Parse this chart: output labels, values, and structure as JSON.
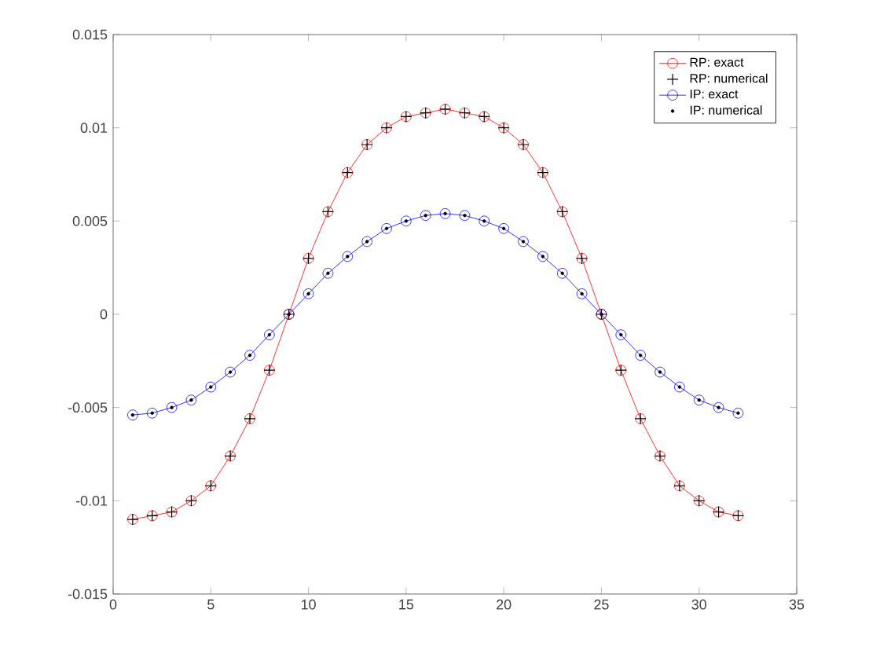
{
  "chart_data": {
    "type": "line",
    "x": [
      1,
      2,
      3,
      4,
      5,
      6,
      7,
      8,
      9,
      10,
      11,
      12,
      13,
      14,
      15,
      16,
      17,
      18,
      19,
      20,
      21,
      22,
      23,
      24,
      25,
      26,
      27,
      28,
      29,
      30,
      31,
      32
    ],
    "series": [
      {
        "name": "RP: exact",
        "color": "#ff0000",
        "marker": "circle",
        "line_style": "solid",
        "values": [
          -0.011,
          -0.0108,
          -0.0106,
          -0.01,
          -0.0092,
          -0.0076,
          -0.0056,
          -0.003,
          0,
          0.003,
          0.0055,
          0.0076,
          0.0091,
          0.01,
          0.0106,
          0.0108,
          0.011,
          0.0108,
          0.0106,
          0.01,
          0.0091,
          0.0076,
          0.0055,
          0.003,
          0,
          -0.003,
          -0.0056,
          -0.0076,
          -0.0092,
          -0.01,
          -0.0106,
          -0.0108
        ]
      },
      {
        "name": "RP: numerical",
        "type": "scatter",
        "color": "#000000",
        "marker": "cross",
        "values": [
          -0.011,
          -0.0108,
          -0.0106,
          -0.01,
          -0.0092,
          -0.0076,
          -0.0056,
          -0.003,
          0,
          0.003,
          0.0055,
          0.0076,
          0.0091,
          0.01,
          0.0106,
          0.0108,
          0.011,
          0.0108,
          0.0106,
          0.01,
          0.0091,
          0.0076,
          0.0055,
          0.003,
          0,
          -0.003,
          -0.0056,
          -0.0076,
          -0.0092,
          -0.01,
          -0.0106,
          -0.0108
        ]
      },
      {
        "name": "IP: exact",
        "color": "#0000ff",
        "marker": "circle",
        "line_style": "solid",
        "values": [
          -0.0054,
          -0.0053,
          -0.005,
          -0.0046,
          -0.0039,
          -0.0031,
          -0.0022,
          -0.0011,
          0,
          0.0011,
          0.0022,
          0.0031,
          0.0039,
          0.0046,
          0.005,
          0.0053,
          0.0054,
          0.0053,
          0.005,
          0.0046,
          0.0039,
          0.0031,
          0.0022,
          0.0011,
          0,
          -0.0011,
          -0.0022,
          -0.0031,
          -0.0039,
          -0.0046,
          -0.005,
          -0.0053
        ]
      },
      {
        "name": "IP: numerical",
        "type": "scatter",
        "color": "#000000",
        "marker": "circle",
        "values": [
          -0.0054,
          -0.0053,
          -0.005,
          -0.0046,
          -0.0039,
          -0.0031,
          -0.0022,
          -0.0011,
          0,
          0.0011,
          0.0022,
          0.0031,
          0.0039,
          0.0046,
          0.005,
          0.0053,
          0.0054,
          0.0053,
          0.005,
          0.0046,
          0.0039,
          0.0031,
          0.0022,
          0.0011,
          0,
          -0.0011,
          -0.0022,
          -0.0031,
          -0.0039,
          -0.0046,
          -0.005,
          -0.0053
        ]
      }
    ],
    "xlim": [
      0,
      35
    ],
    "xticks": [
      0,
      5,
      10,
      15,
      20,
      25,
      30,
      35
    ],
    "ylim": [
      -0.015,
      0.015
    ],
    "yticks": [
      -0.015,
      -0.01,
      -0.005,
      0,
      0.005,
      0.01,
      0.015
    ],
    "grid": false,
    "legend": "top right"
  }
}
